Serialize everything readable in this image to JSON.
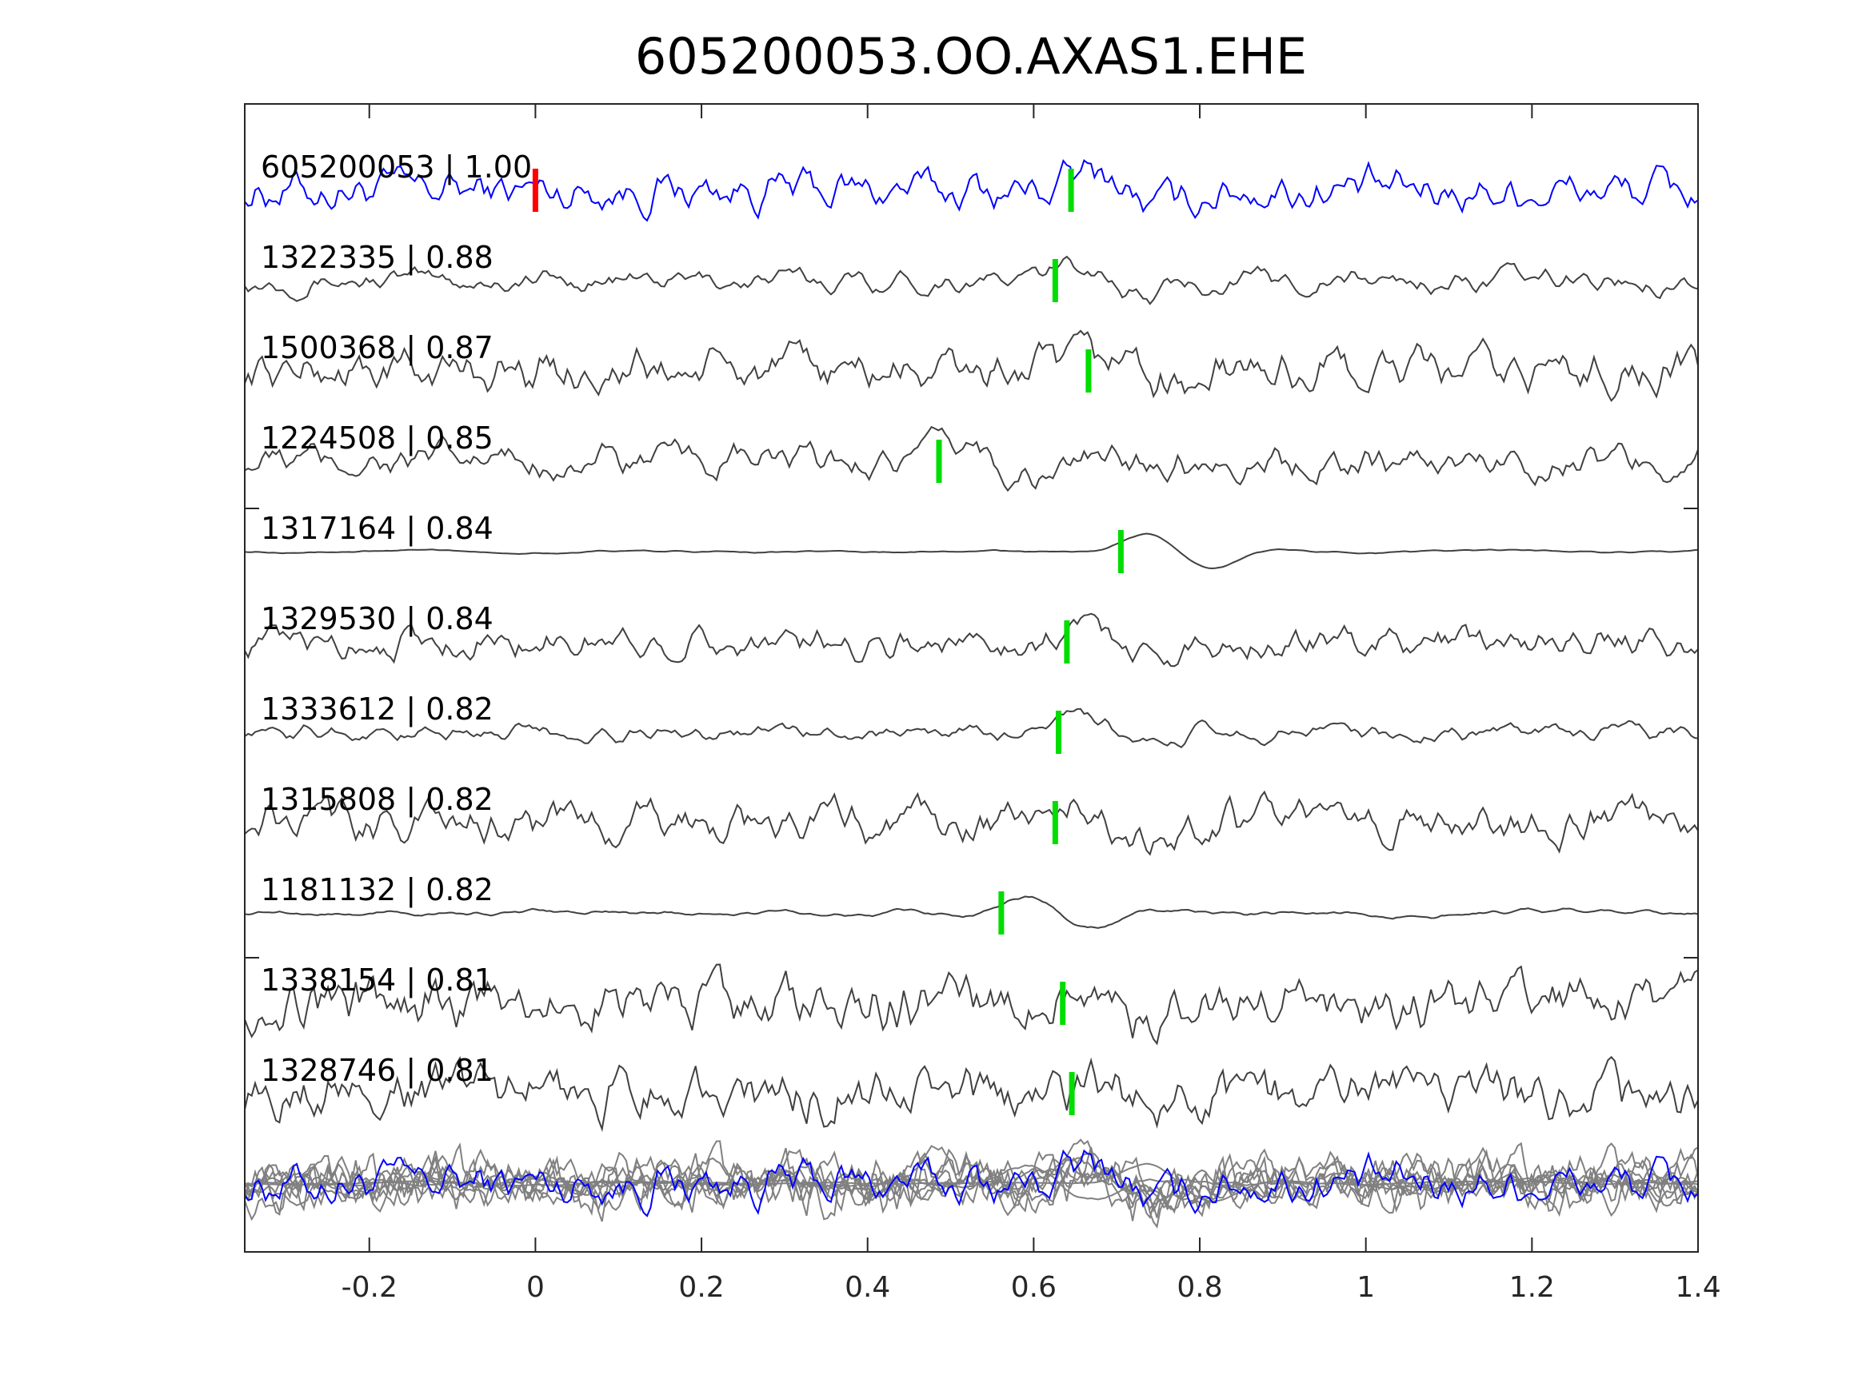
{
  "chart_data": {
    "type": "line",
    "title": "605200053.OO.AXAS1.EHE",
    "xlabel": "",
    "ylabel": "",
    "xlim": [
      -0.35,
      1.4
    ],
    "xticks": [
      -0.2,
      0,
      0.2,
      0.4,
      0.6,
      0.8,
      1,
      1.2,
      1.4
    ],
    "xtick_labels": [
      "-0.2",
      "0",
      "0.2",
      "0.4",
      "0.6",
      "0.8",
      "1",
      "1.2",
      "1.4"
    ],
    "grid": false,
    "reference_pick_time": 0,
    "traces": [
      {
        "label": "605200053 | 1.00",
        "pick": 0.645,
        "color": "#0000ff",
        "amp": 1.0,
        "smooth": 0.5
      },
      {
        "label": "1322335 | 0.88",
        "pick": 0.626,
        "color": "#404040",
        "amp": 0.6,
        "smooth": 0.6
      },
      {
        "label": "1500368 | 0.87",
        "pick": 0.666,
        "color": "#404040",
        "amp": 1.0,
        "smooth": 0.45
      },
      {
        "label": "1224508 | 0.85",
        "pick": 0.486,
        "color": "#404040",
        "amp": 0.8,
        "smooth": 0.5
      },
      {
        "label": "1317164 | 0.84",
        "pick": 0.705,
        "color": "#404040",
        "amp": 0.15,
        "smooth": 0.9
      },
      {
        "label": "1329530 | 0.84",
        "pick": 0.64,
        "color": "#404040",
        "amp": 0.7,
        "smooth": 0.45
      },
      {
        "label": "1333612 | 0.82",
        "pick": 0.63,
        "color": "#404040",
        "amp": 0.5,
        "smooth": 0.65
      },
      {
        "label": "1315808 | 0.82",
        "pick": 0.626,
        "color": "#404040",
        "amp": 1.0,
        "smooth": 0.5
      },
      {
        "label": "1181132 | 0.82",
        "pick": 0.561,
        "color": "#404040",
        "amp": 0.3,
        "smooth": 0.85
      },
      {
        "label": "1338154 | 0.81",
        "pick": 0.635,
        "color": "#404040",
        "amp": 1.1,
        "smooth": 0.35
      },
      {
        "label": "1328746 | 0.81",
        "pick": 0.646,
        "color": "#404040",
        "amp": 1.1,
        "smooth": 0.35
      }
    ],
    "stack_color": "#808080",
    "pick_color": "#00dd00",
    "reference_pick_color": "#ff0000"
  }
}
